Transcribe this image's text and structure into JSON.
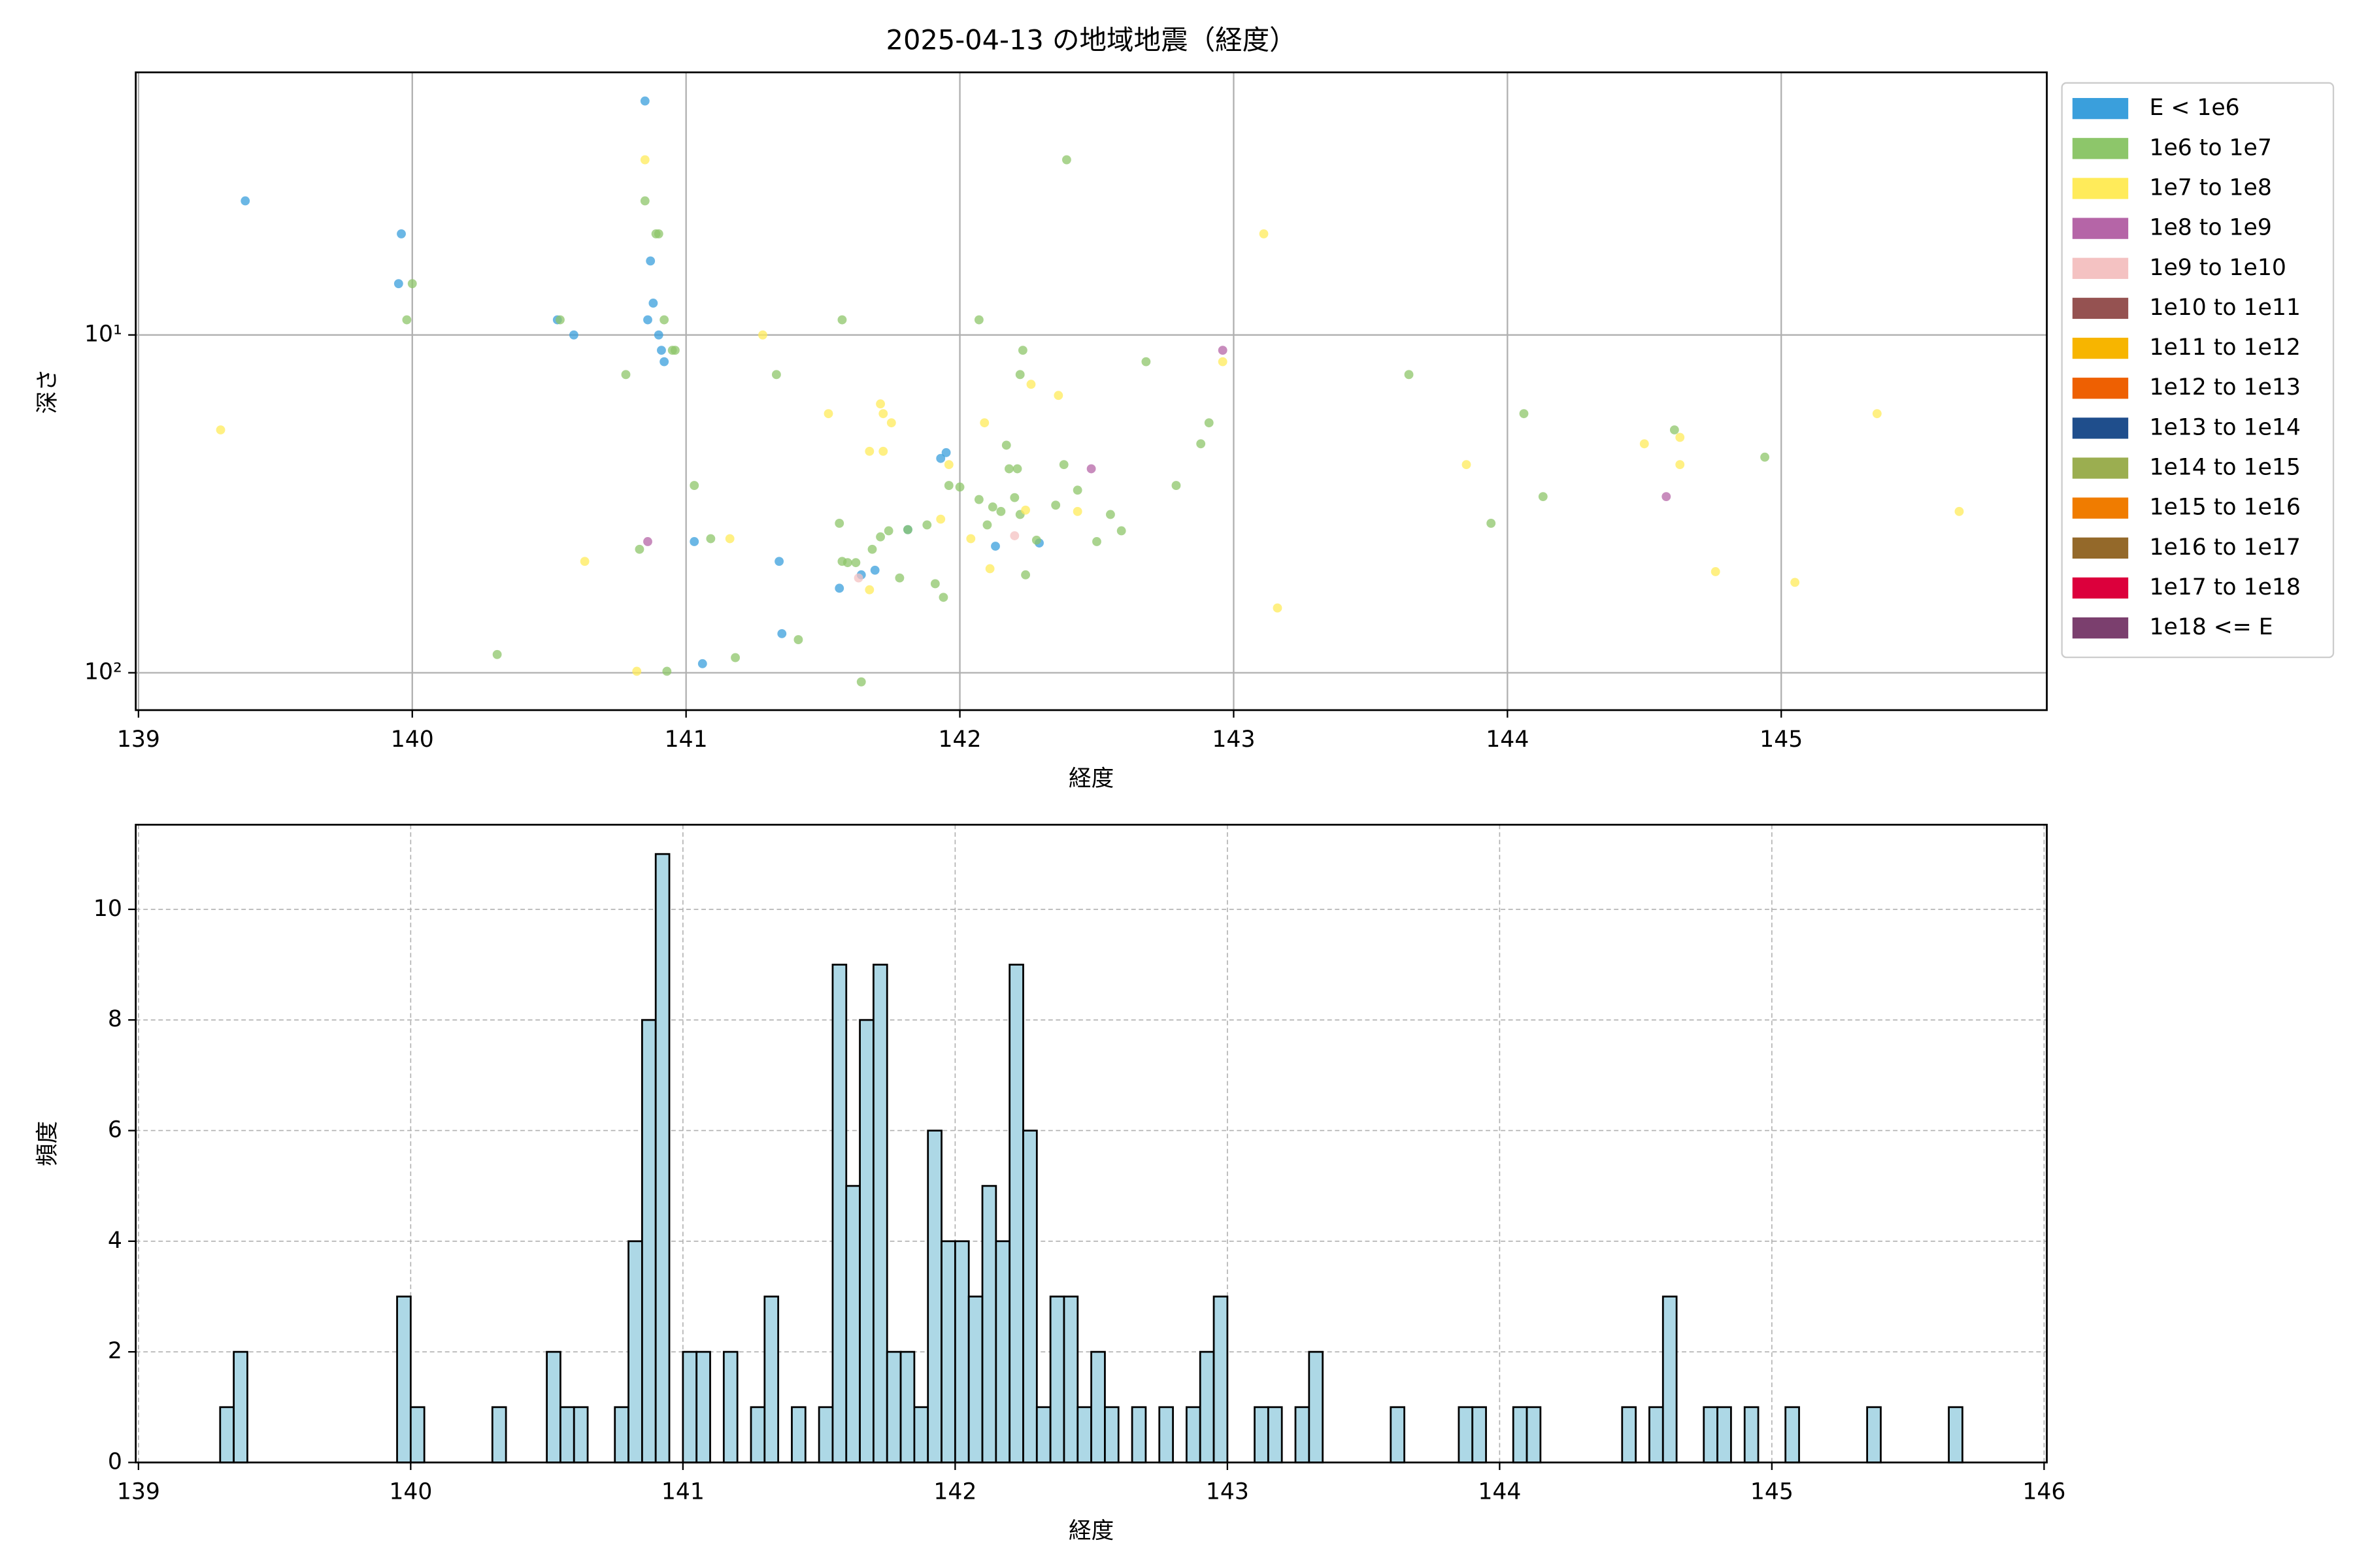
{
  "chart_data": [
    {
      "type": "scatter",
      "title": "2025-04-13 の地域地震（経度）",
      "x_label": "経度",
      "y_label": "深さ",
      "xlim": [
        138.99,
        145.97
      ],
      "xticks": [
        139,
        140,
        141,
        142,
        143,
        144,
        145
      ],
      "ylim": [
        1.67,
        129
      ],
      "y_log": true,
      "y_inverted": true,
      "yticks": [
        {
          "value": 10,
          "label": "10¹"
        },
        {
          "value": 100,
          "label": "10²"
        }
      ],
      "grid": true,
      "legend": "outside-right",
      "series": [
        {
          "name": "E < 1e6",
          "color": "#3a9fdc",
          "x": [
            139.39,
            140.85,
            139.96,
            139.95,
            140.53,
            140.59,
            140.87,
            140.88,
            140.86,
            140.9,
            140.91,
            140.92,
            141.03,
            141.06,
            141.34,
            141.35,
            141.56,
            141.69,
            141.81,
            141.93,
            141.95,
            142.13,
            142.29,
            141.64
          ],
          "y": [
            4.01,
            2.03,
            5.02,
            7.05,
            9.02,
            10,
            6.04,
            8.05,
            9.02,
            10,
            11.1,
            12.0,
            40.9,
            94.0,
            46.8,
            76.6,
            56.2,
            49.7,
            37.7,
            23.2,
            22.3,
            42.2,
            41.3,
            51.3
          ]
        },
        {
          "name": "1e6 to 1e7",
          "color": "#8dc66a",
          "x": [
            140.0,
            139.98,
            140.54,
            140.78,
            140.83,
            140.85,
            140.89,
            140.9,
            140.92,
            140.95,
            140.93,
            141.03,
            141.09,
            141.18,
            141.33,
            141.41,
            141.57,
            141.56,
            141.57,
            141.59,
            141.62,
            141.64,
            141.68,
            141.71,
            141.74,
            141.78,
            141.81,
            141.88,
            141.91,
            141.94,
            141.96,
            142.0,
            142.07,
            142.1,
            142.12,
            142.17,
            142.18,
            142.15,
            142.21,
            142.2,
            142.22,
            142.24,
            142.28,
            142.35,
            142.38,
            142.43,
            142.5,
            142.55,
            142.59,
            142.68,
            142.23,
            142.22,
            142.07,
            142.39,
            142.79,
            142.88,
            142.91,
            143.64,
            143.94,
            144.06,
            144.13,
            144.61,
            144.94,
            140.31,
            140.96
          ],
          "y": [
            7.05,
            9.02,
            9.02,
            13.1,
            43.1,
            4.01,
            5.02,
            5.02,
            9.02,
            11.1,
            99.0,
            27.9,
            40.1,
            90.2,
            13.1,
            79.8,
            9.02,
            36.1,
            46.8,
            47.2,
            47.2,
            106.4,
            43.1,
            39.6,
            38.0,
            52.4,
            37.7,
            36.5,
            54.5,
            59.8,
            27.9,
            28.2,
            30.7,
            36.5,
            32.3,
            21.2,
            24.9,
            33.3,
            24.9,
            30.3,
            34.0,
            51.3,
            40.5,
            31.9,
            24.2,
            28.8,
            40.9,
            34.0,
            38.0,
            12.0,
            11.1,
            13.1,
            9.02,
            3.03,
            27.9,
            21.0,
            18.2,
            13.1,
            36.1,
            17.1,
            30.1,
            19.1,
            23.0,
            88.3,
            11.1
          ]
        },
        {
          "name": "1e7 to 1e8",
          "color": "#ffeb5a",
          "x": [
            139.3,
            140.85,
            141.28,
            141.52,
            141.71,
            141.72,
            141.75,
            141.67,
            141.72,
            140.63,
            140.82,
            141.16,
            141.67,
            141.93,
            141.96,
            142.04,
            142.09,
            142.11,
            142.24,
            142.26,
            142.36,
            142.43,
            142.96,
            143.11,
            143.16,
            143.85,
            144.5,
            144.63,
            144.63,
            144.76,
            145.05,
            145.35,
            145.65
          ],
          "y": [
            19.1,
            3.03,
            10,
            17.1,
            16.0,
            17.1,
            18.2,
            22.1,
            22.1,
            46.8,
            99.0,
            40.1,
            56.8,
            35.1,
            24.2,
            40.1,
            18.2,
            49.2,
            33.0,
            14.0,
            15.1,
            33.3,
            12.0,
            5.02,
            64.3,
            24.2,
            21.0,
            20.1,
            24.2,
            50.2,
            54.0,
            17.1,
            33.3
          ]
        },
        {
          "name": "1e8 to 1e9",
          "color": "#b565a7",
          "x": [
            140.86,
            142.48,
            142.96,
            144.58
          ],
          "y": [
            40.9,
            24.9,
            11.1,
            30.1
          ]
        },
        {
          "name": "1e9 to 1e10",
          "color": "#f4c2c2",
          "x": [
            141.63,
            142.2
          ],
          "y": [
            52.4,
            39.3
          ]
        },
        {
          "name": "1e10 to 1e11",
          "color": "#955251",
          "x": [],
          "y": []
        },
        {
          "name": "1e11 to 1e12",
          "color": "#f7b500",
          "x": [],
          "y": []
        },
        {
          "name": "1e12 to 1e13",
          "color": "#ee6002",
          "x": [],
          "y": []
        },
        {
          "name": "1e13 to 1e14",
          "color": "#1f4e8c",
          "x": [],
          "y": []
        },
        {
          "name": "1e14 to 1e15",
          "color": "#9bae50",
          "x": [],
          "y": []
        },
        {
          "name": "1e15 to 1e16",
          "color": "#f07c00",
          "x": [],
          "y": []
        },
        {
          "name": "1e16 to 1e17",
          "color": "#94692a",
          "x": [],
          "y": []
        },
        {
          "name": "1e17 to 1e18",
          "color": "#dc003c",
          "x": [],
          "y": []
        },
        {
          "name": "1e18 <= E",
          "color": "#7b3f6e",
          "x": [],
          "y": []
        }
      ]
    },
    {
      "type": "histogram",
      "x_label": "経度",
      "y_label": "頻度",
      "color": "#add8e6",
      "edgecolor": "#000000",
      "xlim": [
        138.99,
        146.01
      ],
      "xticks": [
        139,
        140,
        141,
        142,
        143,
        144,
        145,
        146
      ],
      "ylim": [
        0,
        11.53
      ],
      "yticks": [
        0,
        2,
        4,
        6,
        8,
        10
      ],
      "grid": true,
      "grid_style": "dashed",
      "bins": [
        139.3,
        139.35,
        139.4,
        139.45,
        139.5,
        139.55,
        139.6,
        139.65,
        139.7,
        139.75,
        139.8,
        139.85,
        139.9,
        139.95,
        140,
        140.05,
        140.1,
        140.15,
        140.2,
        140.25,
        140.3,
        140.35,
        140.4,
        140.45,
        140.5,
        140.55,
        140.6,
        140.65,
        140.7,
        140.75,
        140.8,
        140.85,
        140.9,
        140.95,
        141,
        141.05,
        141.1,
        141.15,
        141.2,
        141.25,
        141.3,
        141.35,
        141.4,
        141.45,
        141.5,
        141.55,
        141.6,
        141.65,
        141.7,
        141.75,
        141.8,
        141.85,
        141.9,
        141.95,
        142,
        142.05,
        142.1,
        142.15,
        142.2,
        142.25,
        142.3,
        142.35,
        142.4,
        142.45,
        142.5,
        142.55,
        142.6,
        142.65,
        142.7,
        142.75,
        142.8,
        142.85,
        142.9,
        142.95,
        143,
        143.05,
        143.1,
        143.15,
        143.2,
        143.25,
        143.3,
        143.35,
        143.4,
        143.45,
        143.5,
        143.55,
        143.6,
        143.65,
        143.7,
        143.75,
        143.8,
        143.85,
        143.9,
        143.95,
        144,
        144.05,
        144.1,
        144.15,
        144.2,
        144.25,
        144.3,
        144.35,
        144.4,
        144.45,
        144.5,
        144.55,
        144.6,
        144.65,
        144.7,
        144.75,
        144.8,
        144.85,
        144.9,
        144.95,
        145,
        145.05,
        145.1,
        145.15,
        145.2,
        145.25,
        145.3,
        145.35,
        145.4,
        145.45,
        145.5,
        145.55,
        145.6,
        145.65,
        145.7
      ],
      "counts": [
        1,
        2,
        0,
        0,
        0,
        0,
        0,
        0,
        0,
        0,
        0,
        0,
        0,
        3,
        1,
        0,
        0,
        0,
        0,
        0,
        1,
        0,
        0,
        0,
        2,
        1,
        1,
        0,
        0,
        1,
        4,
        8,
        11,
        0,
        2,
        2,
        0,
        2,
        0,
        1,
        3,
        0,
        1,
        0,
        1,
        9,
        5,
        8,
        9,
        2,
        2,
        1,
        6,
        4,
        4,
        3,
        5,
        4,
        9,
        6,
        1,
        3,
        3,
        1,
        2,
        1,
        0,
        1,
        0,
        1,
        0,
        1,
        2,
        3,
        0,
        0,
        1,
        1,
        0,
        1,
        2,
        0,
        0,
        0,
        0,
        0,
        1,
        0,
        0,
        0,
        0,
        1,
        1,
        0,
        0,
        1,
        1,
        0,
        0,
        0,
        0,
        0,
        0,
        1,
        0,
        1,
        3,
        0,
        0,
        1,
        1,
        0,
        1,
        0,
        0,
        1,
        0,
        0,
        0,
        0,
        0,
        1,
        0,
        0,
        0,
        0,
        0,
        1
      ]
    }
  ]
}
